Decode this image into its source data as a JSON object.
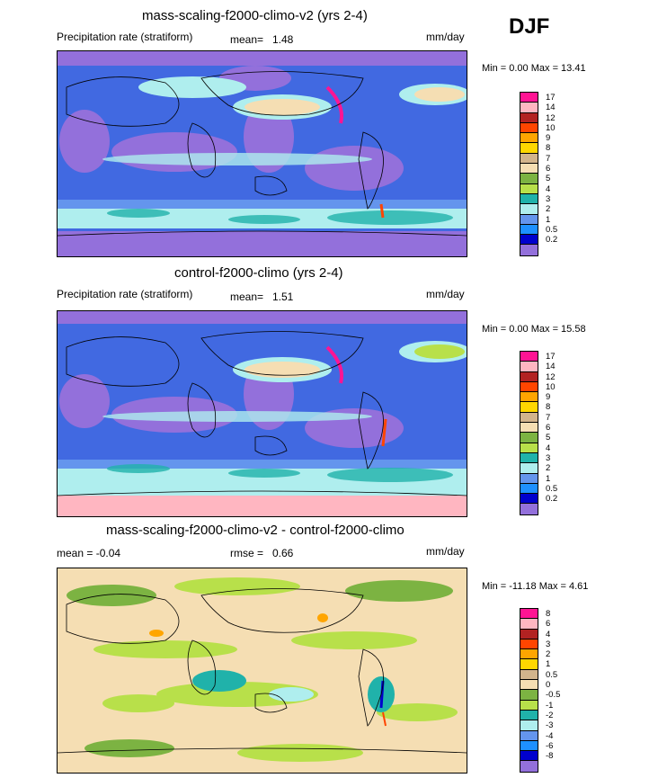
{
  "season": "DJF",
  "panels": [
    {
      "title": "mass-scaling-f2000-climo-v2 (yrs 2-4)",
      "left_label": "Precipitation rate (stratiform)",
      "mean_label": "mean=",
      "mean_value": "1.48",
      "rmse_label": "",
      "rmse_value": "",
      "units": "mm/day",
      "minmax": "Min =   0.00 Max =  13.41",
      "colorbar_labels": [
        "17",
        "14",
        "12",
        "10",
        "9",
        "8",
        "7",
        "6",
        "5",
        "4",
        "3",
        "2",
        "1",
        "0.5",
        "0.2"
      ],
      "colorbar_colors": [
        "#ff1493",
        "#ffb6c1",
        "#b22222",
        "#ff4500",
        "#ffa500",
        "#ffd700",
        "#d2b48c",
        "#f5deb3",
        "#7cb342",
        "#b8e04a",
        "#20b2aa",
        "#afeeee",
        "#6495ed",
        "#1e90ff",
        "#0000cd",
        "#9370db"
      ]
    },
    {
      "title": "control-f2000-climo (yrs 2-4)",
      "left_label": "Precipitation rate (stratiform)",
      "mean_label": "mean=",
      "mean_value": "1.51",
      "rmse_label": "",
      "rmse_value": "",
      "units": "mm/day",
      "minmax": "Min =   0.00 Max =  15.58",
      "colorbar_labels": [
        "17",
        "14",
        "12",
        "10",
        "9",
        "8",
        "7",
        "6",
        "5",
        "4",
        "3",
        "2",
        "1",
        "0.5",
        "0.2"
      ],
      "colorbar_colors": [
        "#ff1493",
        "#ffb6c1",
        "#b22222",
        "#ff4500",
        "#ffa500",
        "#ffd700",
        "#d2b48c",
        "#f5deb3",
        "#7cb342",
        "#b8e04a",
        "#20b2aa",
        "#afeeee",
        "#6495ed",
        "#1e90ff",
        "#0000cd",
        "#9370db"
      ]
    },
    {
      "title": "mass-scaling-f2000-climo-v2 - control-f2000-climo",
      "left_label": "mean =  -0.04",
      "mean_label": "",
      "mean_value": "",
      "rmse_label": "rmse =",
      "rmse_value": "0.66",
      "units": "mm/day",
      "minmax": "Min = -11.18 Max =   4.61",
      "colorbar_labels": [
        "8",
        "6",
        "4",
        "3",
        "2",
        "1",
        "0.5",
        "0",
        "-0.5",
        "-1",
        "-2",
        "-3",
        "-4",
        "-6",
        "-8"
      ],
      "colorbar_colors": [
        "#ff1493",
        "#ffb6c1",
        "#b22222",
        "#ff4500",
        "#ffa500",
        "#ffd700",
        "#d2b48c",
        "#f5deb3",
        "#7cb342",
        "#b8e04a",
        "#20b2aa",
        "#afeeee",
        "#6495ed",
        "#1e90ff",
        "#0000cd",
        "#9370db"
      ]
    }
  ]
}
